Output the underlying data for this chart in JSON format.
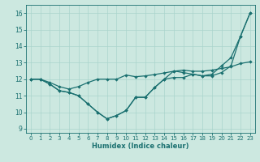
{
  "xlabel": "Humidex (Indice chaleur)",
  "bg_color": "#cce8e0",
  "line_color": "#1a7070",
  "grid_color": "#aad4cc",
  "xlim": [
    -0.5,
    23.5
  ],
  "ylim": [
    8.75,
    16.5
  ],
  "xticks": [
    0,
    1,
    2,
    3,
    4,
    5,
    6,
    7,
    8,
    9,
    10,
    11,
    12,
    13,
    14,
    15,
    16,
    17,
    18,
    19,
    20,
    21,
    22,
    23
  ],
  "yticks": [
    9,
    10,
    11,
    12,
    13,
    14,
    15,
    16
  ],
  "series1_x": [
    0,
    1,
    2,
    3,
    4,
    5,
    6,
    7,
    8,
    9,
    10,
    11,
    12,
    13,
    14,
    15,
    16,
    17,
    18,
    19,
    20,
    21,
    22,
    23
  ],
  "series1_y": [
    12.0,
    12.0,
    11.8,
    11.55,
    11.4,
    11.55,
    11.8,
    12.0,
    12.0,
    12.0,
    12.25,
    12.15,
    12.2,
    12.28,
    12.38,
    12.48,
    12.55,
    12.48,
    12.48,
    12.55,
    12.65,
    12.75,
    12.95,
    13.05
  ],
  "series2_x": [
    0,
    1,
    2,
    3,
    4,
    5,
    6,
    7,
    8,
    9,
    10,
    11,
    12,
    13,
    14,
    15,
    16,
    17,
    18,
    19,
    20,
    21,
    22,
    23
  ],
  "series2_y": [
    12.0,
    12.0,
    11.7,
    11.3,
    11.2,
    11.0,
    10.5,
    10.0,
    9.6,
    9.8,
    10.1,
    10.9,
    10.9,
    11.5,
    12.0,
    12.1,
    12.1,
    12.3,
    12.2,
    12.2,
    12.4,
    12.8,
    14.6,
    16.0
  ],
  "series3_x": [
    0,
    1,
    2,
    3,
    4,
    5,
    6,
    7,
    8,
    9,
    10,
    11,
    12,
    13,
    14,
    15,
    16,
    17,
    18,
    19,
    20,
    21,
    22,
    23
  ],
  "series3_y": [
    12.0,
    12.0,
    11.7,
    11.3,
    11.2,
    11.0,
    10.5,
    10.0,
    9.6,
    9.8,
    10.1,
    10.9,
    10.9,
    11.5,
    12.0,
    12.5,
    12.4,
    12.3,
    12.2,
    12.3,
    12.8,
    13.3,
    14.6,
    16.0
  ],
  "xtick_fontsize": 5.0,
  "ytick_fontsize": 5.5,
  "xlabel_fontsize": 6.0
}
